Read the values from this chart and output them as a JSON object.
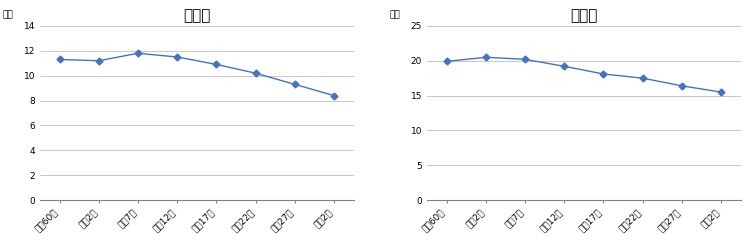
{
  "title1": "河内町",
  "title2": "利根町",
  "ylabel": "千人",
  "x_labels": [
    "昭和60年",
    "平成2年",
    "平成7年",
    "平成12年",
    "平成17年",
    "平成22年",
    "平成27年",
    "令和2年"
  ],
  "values1": [
    11.3,
    11.2,
    11.8,
    11.5,
    10.9,
    10.2,
    9.3,
    8.4
  ],
  "values2": [
    19.9,
    20.5,
    20.2,
    19.2,
    18.1,
    17.5,
    16.4,
    15.5
  ],
  "ylim1": [
    0,
    14
  ],
  "ylim2": [
    0,
    25
  ],
  "yticks1": [
    0,
    2,
    4,
    6,
    8,
    10,
    12,
    14
  ],
  "yticks2": [
    0,
    5,
    10,
    15,
    20,
    25
  ],
  "line_color": "#4472c4",
  "marker": "D",
  "marker_size": 3.5,
  "bg_color": "#ffffff",
  "grid_color": "#bfbfbf",
  "title_fontsize": 11,
  "label_fontsize": 6.5,
  "tick_fontsize": 6.5
}
